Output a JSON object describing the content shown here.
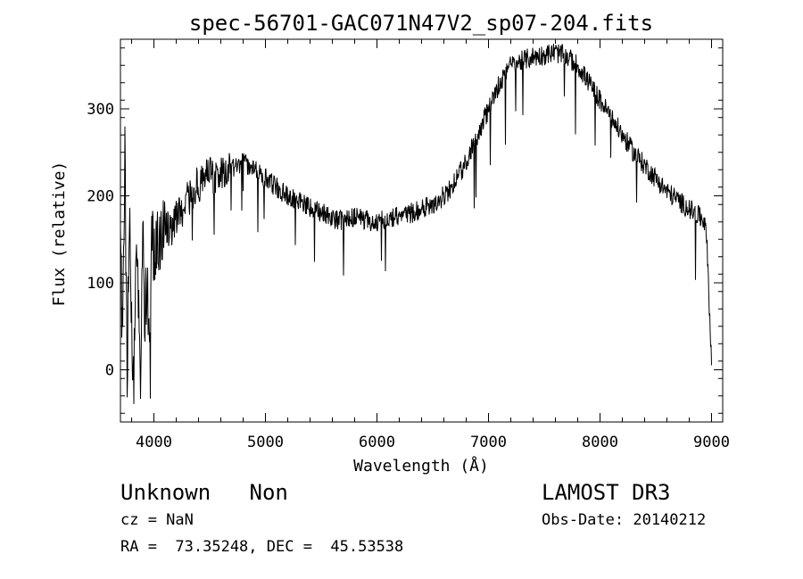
{
  "chart_data": {
    "type": "line",
    "title": "spec-56701-GAC071N47V2_sp07-204.fits",
    "xlabel": "Wavelength (Å)",
    "ylabel": "Flux (relative)",
    "xlim": [
      3700,
      9100
    ],
    "ylim": [
      -60,
      380
    ],
    "x_ticks": [
      4000,
      5000,
      6000,
      7000,
      8000,
      9000
    ],
    "y_ticks": [
      0,
      100,
      200,
      300
    ],
    "grid": false,
    "series": [
      {
        "name": "flux",
        "x": [
          3700,
          3720,
          3740,
          3760,
          3780,
          3800,
          3820,
          3840,
          3860,
          3880,
          3900,
          3920,
          3940,
          3960,
          3980,
          4000,
          4050,
          4100,
          4150,
          4200,
          4250,
          4300,
          4350,
          4400,
          4450,
          4500,
          4550,
          4600,
          4650,
          4700,
          4750,
          4800,
          4850,
          4900,
          4950,
          5000,
          5100,
          5200,
          5300,
          5400,
          5500,
          5600,
          5700,
          5800,
          5900,
          6000,
          6100,
          6200,
          6300,
          6400,
          6500,
          6600,
          6700,
          6800,
          6900,
          7000,
          7100,
          7200,
          7300,
          7400,
          7500,
          7600,
          7700,
          7800,
          7900,
          8000,
          8100,
          8200,
          8300,
          8400,
          8500,
          8600,
          8700,
          8800,
          8900,
          8950,
          9000
        ],
        "y": [
          160,
          20,
          250,
          -10,
          180,
          60,
          -20,
          150,
          100,
          -30,
          170,
          60,
          120,
          20,
          150,
          130,
          150,
          170,
          160,
          175,
          180,
          195,
          205,
          215,
          220,
          225,
          220,
          230,
          225,
          230,
          235,
          240,
          235,
          230,
          225,
          220,
          210,
          200,
          195,
          185,
          180,
          175,
          170,
          175,
          172,
          170,
          175,
          178,
          180,
          185,
          190,
          200,
          215,
          240,
          270,
          300,
          330,
          350,
          355,
          360,
          362,
          365,
          360,
          350,
          330,
          310,
          290,
          270,
          250,
          235,
          220,
          205,
          195,
          185,
          175,
          170,
          10
        ]
      }
    ]
  },
  "annotations": {
    "class_label": "Unknown   Non",
    "survey": "LAMOST DR3",
    "cz": "cz = NaN",
    "obs_date": "Obs-Date: 20140212",
    "radec": "RA =  73.35248, DEC =  45.53538"
  }
}
